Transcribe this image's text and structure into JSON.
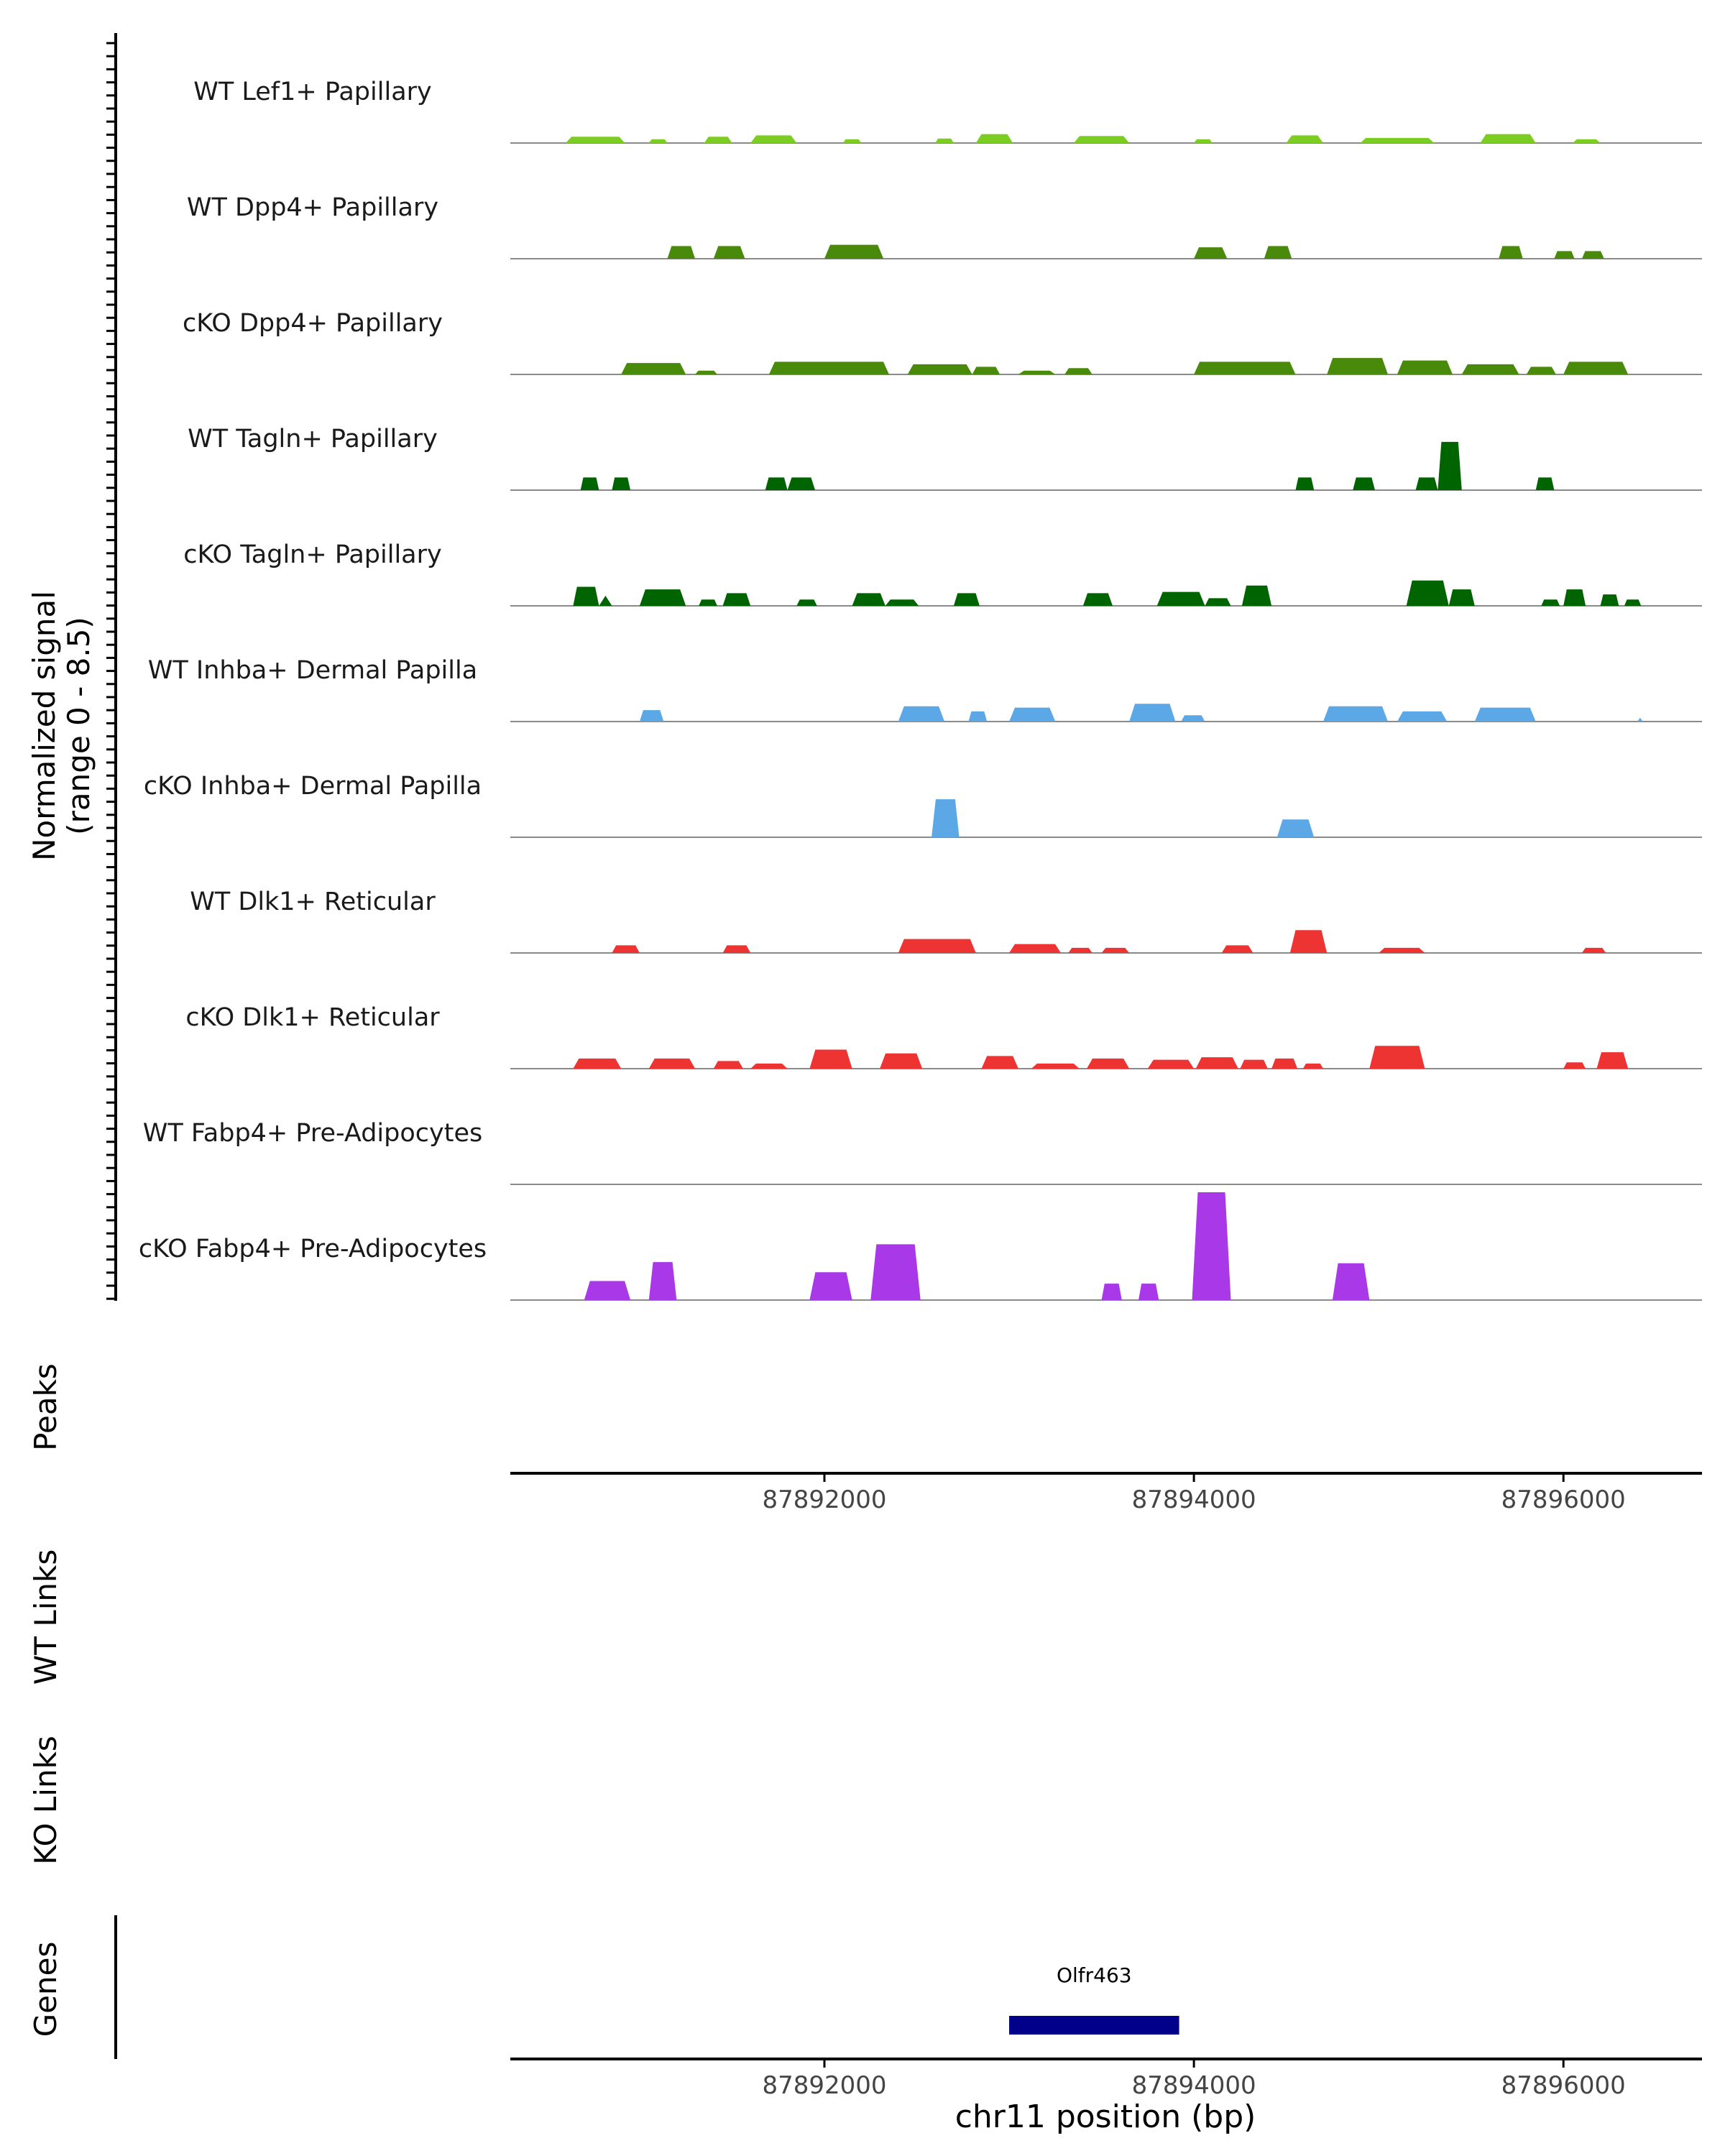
{
  "chart_data": {
    "type": "area",
    "title": "",
    "region": "chr11",
    "xlim": [
      87890300,
      87896750
    ],
    "x_ticks": [
      87892000,
      87894000,
      87896000
    ],
    "x_tick_labels": [
      "87892000",
      "87894000",
      "87896000"
    ],
    "xlabel": "chr11 position (bp)",
    "ylabel": "Normalized signal",
    "ylabel_range": "(range 0 - 8.5)",
    "ylim": [
      0,
      8.5
    ],
    "panel_labels": {
      "peaks": "Peaks",
      "wt_links": "WT Links",
      "ko_links": "KO Links",
      "genes": "Genes"
    },
    "tracks": [
      {
        "name": "WT Lef1+ Papillary",
        "color": "#7CCD21",
        "peaks": [
          [
            87890600,
            87890920,
            0.5
          ],
          [
            87891050,
            87891150,
            0.3
          ],
          [
            87891350,
            87891500,
            0.5
          ],
          [
            87891600,
            87891850,
            0.6
          ],
          [
            87892100,
            87892200,
            0.3
          ],
          [
            87892600,
            87892700,
            0.35
          ],
          [
            87892820,
            87893020,
            0.7
          ],
          [
            87893350,
            87893650,
            0.55
          ],
          [
            87894000,
            87894100,
            0.3
          ],
          [
            87894500,
            87894700,
            0.6
          ],
          [
            87894900,
            87895300,
            0.4
          ],
          [
            87895550,
            87895850,
            0.7
          ],
          [
            87896050,
            87896200,
            0.3
          ]
        ]
      },
      {
        "name": "WT Dpp4+ Papillary",
        "color": "#4A8A0A",
        "peaks": [
          [
            87891150,
            87891300,
            1.0
          ],
          [
            87891400,
            87891570,
            1.0
          ],
          [
            87892000,
            87892320,
            1.1
          ],
          [
            87894000,
            87894180,
            0.9
          ],
          [
            87894380,
            87894530,
            1.0
          ],
          [
            87895650,
            87895780,
            1.0
          ],
          [
            87895950,
            87896060,
            0.6
          ],
          [
            87896100,
            87896220,
            0.6
          ]
        ]
      },
      {
        "name": "cKO Dpp4+ Papillary",
        "color": "#4A8A0A",
        "peaks": [
          [
            87890900,
            87891250,
            0.9
          ],
          [
            87891300,
            87891420,
            0.3
          ],
          [
            87891700,
            87892350,
            1.0
          ],
          [
            87892450,
            87892800,
            0.8
          ],
          [
            87892800,
            87892950,
            0.6
          ],
          [
            87893050,
            87893250,
            0.3
          ],
          [
            87893300,
            87893450,
            0.5
          ],
          [
            87894000,
            87894550,
            1.0
          ],
          [
            87894720,
            87895050,
            1.3
          ],
          [
            87895100,
            87895400,
            1.1
          ],
          [
            87895450,
            87895760,
            0.8
          ],
          [
            87895800,
            87895960,
            0.6
          ],
          [
            87896000,
            87896350,
            1.0
          ]
        ]
      },
      {
        "name": "WT Tagln+ Papillary",
        "color": "#006400",
        "peaks": [
          [
            87890680,
            87890780,
            1.0
          ],
          [
            87890850,
            87890950,
            1.0
          ],
          [
            87891680,
            87891800,
            1.0
          ],
          [
            87891800,
            87891950,
            1.0
          ],
          [
            87894550,
            87894650,
            1.0
          ],
          [
            87894860,
            87894980,
            1.0
          ],
          [
            87895200,
            87895320,
            1.0
          ],
          [
            87895320,
            87895450,
            3.8
          ],
          [
            87895850,
            87895950,
            1.0
          ]
        ]
      },
      {
        "name": "cKO Tagln+ Papillary",
        "color": "#006400",
        "peaks": [
          [
            87890640,
            87890780,
            1.5
          ],
          [
            87890780,
            87890850,
            0.8
          ],
          [
            87891000,
            87891250,
            1.3
          ],
          [
            87891320,
            87891420,
            0.5
          ],
          [
            87891450,
            87891600,
            1.0
          ],
          [
            87891850,
            87891960,
            0.5
          ],
          [
            87892150,
            87892330,
            1.0
          ],
          [
            87892330,
            87892510,
            0.5
          ],
          [
            87892700,
            87892840,
            1.0
          ],
          [
            87893400,
            87893560,
            1.0
          ],
          [
            87893800,
            87894060,
            1.1
          ],
          [
            87894060,
            87894200,
            0.6
          ],
          [
            87894260,
            87894420,
            1.6
          ],
          [
            87895150,
            87895380,
            2.0
          ],
          [
            87895380,
            87895520,
            1.3
          ],
          [
            87895880,
            87895980,
            0.5
          ],
          [
            87896000,
            87896120,
            1.3
          ],
          [
            87896200,
            87896300,
            0.9
          ],
          [
            87896330,
            87896420,
            0.5
          ]
        ]
      },
      {
        "name": "WT Inhba+ Dermal Papilla",
        "color": "#5CA8E6",
        "peaks": [
          [
            87891000,
            87891130,
            0.9
          ],
          [
            87892400,
            87892650,
            1.2
          ],
          [
            87892780,
            87892880,
            0.8
          ],
          [
            87893000,
            87893250,
            1.1
          ],
          [
            87893650,
            87893900,
            1.4
          ],
          [
            87893930,
            87894060,
            0.5
          ],
          [
            87894700,
            87895050,
            1.2
          ],
          [
            87895100,
            87895370,
            0.8
          ],
          [
            87895520,
            87895850,
            1.1
          ],
          [
            87896400,
            87896430,
            0.3
          ]
        ]
      },
      {
        "name": "cKO Inhba+ Dermal Papilla",
        "color": "#5CA8E6",
        "peaks": [
          [
            87892580,
            87892730,
            3.0
          ],
          [
            87894450,
            87894650,
            1.4
          ]
        ]
      },
      {
        "name": "WT Dlk1+ Reticular",
        "color": "#EE3333",
        "peaks": [
          [
            87890850,
            87891000,
            0.6
          ],
          [
            87891450,
            87891600,
            0.6
          ],
          [
            87892400,
            87892820,
            1.1
          ],
          [
            87893000,
            87893280,
            0.7
          ],
          [
            87893320,
            87893450,
            0.4
          ],
          [
            87893500,
            87893650,
            0.4
          ],
          [
            87894150,
            87894320,
            0.6
          ],
          [
            87894520,
            87894720,
            1.8
          ],
          [
            87895000,
            87895250,
            0.4
          ],
          [
            87896100,
            87896230,
            0.4
          ]
        ]
      },
      {
        "name": "cKO Dlk1+ Reticular",
        "color": "#EE3333",
        "peaks": [
          [
            87890640,
            87890900,
            0.8
          ],
          [
            87891050,
            87891300,
            0.8
          ],
          [
            87891400,
            87891560,
            0.6
          ],
          [
            87891600,
            87891800,
            0.4
          ],
          [
            87891920,
            87892150,
            1.5
          ],
          [
            87892300,
            87892530,
            1.2
          ],
          [
            87892850,
            87893050,
            1.0
          ],
          [
            87893120,
            87893380,
            0.4
          ],
          [
            87893420,
            87893650,
            0.8
          ],
          [
            87893750,
            87894000,
            0.7
          ],
          [
            87894010,
            87894240,
            0.9
          ],
          [
            87894250,
            87894400,
            0.7
          ],
          [
            87894420,
            87894560,
            0.8
          ],
          [
            87894590,
            87894700,
            0.4
          ],
          [
            87894950,
            87895250,
            1.8
          ],
          [
            87896000,
            87896120,
            0.5
          ],
          [
            87896180,
            87896350,
            1.3
          ]
        ]
      },
      {
        "name": "WT Fabp4+ Pre-Adipocytes",
        "color": "#A838E8",
        "peaks": []
      },
      {
        "name": "cKO Fabp4+ Pre-Adipocytes",
        "color": "#A838E8",
        "peaks": [
          [
            87890700,
            87890950,
            1.5
          ],
          [
            87891050,
            87891200,
            3.0
          ],
          [
            87891920,
            87892150,
            2.2
          ],
          [
            87892250,
            87892520,
            4.4
          ],
          [
            87893500,
            87893610,
            1.3
          ],
          [
            87893700,
            87893810,
            1.3
          ],
          [
            87893990,
            87894200,
            8.5
          ],
          [
            87894750,
            87894950,
            2.9
          ]
        ]
      }
    ],
    "genes": [
      {
        "name": "Olfr463",
        "start": 87893000,
        "end": 87893920,
        "color": "#00008B"
      }
    ]
  }
}
